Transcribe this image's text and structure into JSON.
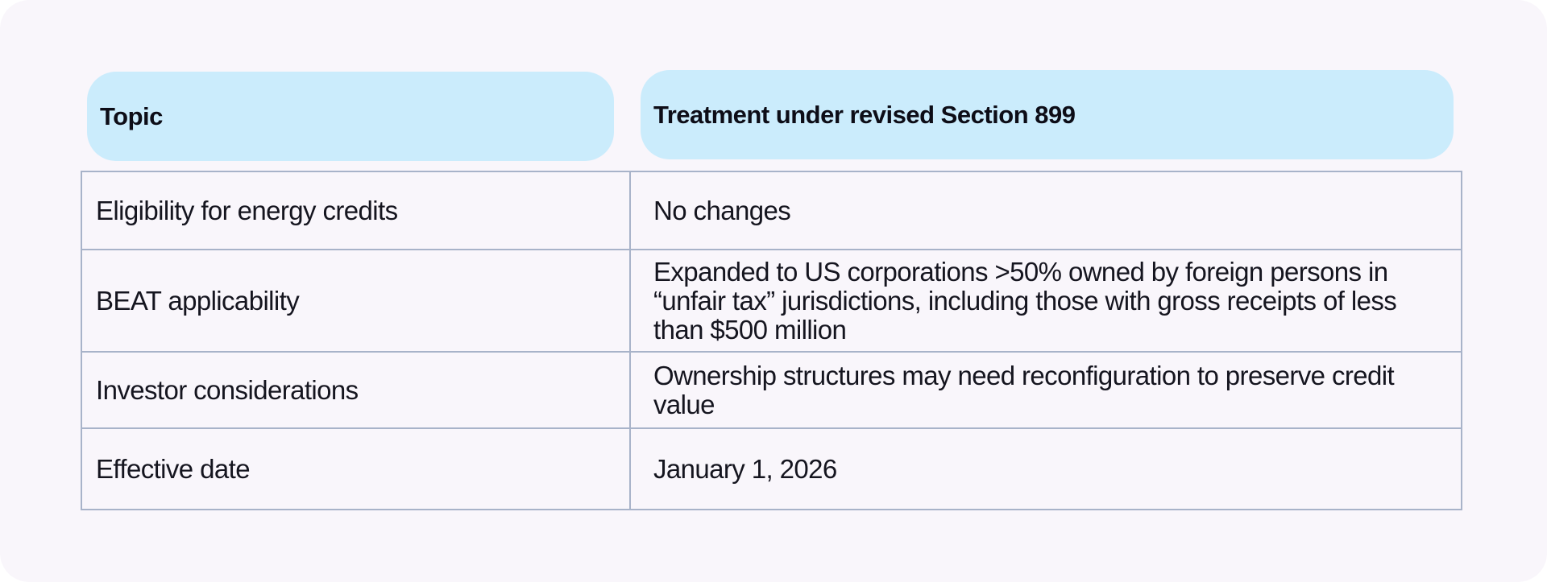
{
  "header": {
    "topic_label": "Topic",
    "treatment_label": "Treatment under revised Section 899"
  },
  "rows": [
    {
      "topic": "Eligibility for energy credits",
      "treatment": "No changes"
    },
    {
      "topic": "BEAT applicability",
      "treatment": "Expanded to US corporations >50% owned by foreign persons in “unfair tax” jurisdictions, including those with gross receipts of less than $500 million"
    },
    {
      "topic": "Investor considerations",
      "treatment": "Ownership structures may need reconfiguration to preserve credit value"
    },
    {
      "topic": "Effective date",
      "treatment": "January 1, 2026"
    }
  ],
  "colors": {
    "header_bg": "#cbecfc",
    "card_bg": "#f9f6fb",
    "border": "#a8b3c9",
    "text": "#15151f"
  }
}
